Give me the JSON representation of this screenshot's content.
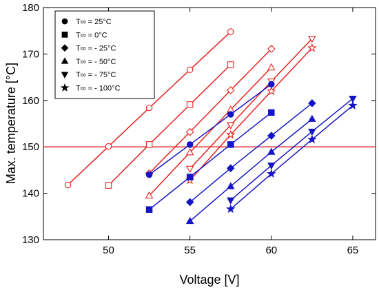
{
  "chart_data": {
    "type": "line",
    "xlabel": "Voltage [V]",
    "ylabel": "Max. temperature [°C]",
    "xlim": [
      46,
      66.4
    ],
    "ylim": [
      130,
      180
    ],
    "xticks": [
      50,
      55,
      60,
      65
    ],
    "yticks": [
      130,
      140,
      150,
      160,
      170,
      180
    ],
    "grid": false,
    "legend_position": "top-left",
    "reference_line": {
      "y": 150,
      "color": "#e02020"
    },
    "colors": {
      "red": "#e8211e",
      "blue": "#1515c8"
    },
    "series": [
      {
        "name": "T∞ = 25°C",
        "marker": "circle",
        "color": "red",
        "fill": false,
        "x": [
          47.5,
          50,
          52.5,
          55,
          57.5
        ],
        "y": [
          141.8,
          150.1,
          158.4,
          166.6,
          174.8
        ]
      },
      {
        "name": "T∞ = 0°C",
        "marker": "square",
        "color": "red",
        "fill": false,
        "x": [
          50,
          52.5,
          55,
          57.5
        ],
        "y": [
          141.7,
          150.5,
          159.1,
          167.7
        ]
      },
      {
        "name": "T∞ = - 25°C",
        "marker": "diamond",
        "color": "red",
        "fill": false,
        "x": [
          52.5,
          55,
          57.5,
          60
        ],
        "y": [
          144.3,
          153.2,
          162.2,
          171.1
        ]
      },
      {
        "name": "T∞ = - 50°C",
        "marker": "triangle-up",
        "color": "red",
        "fill": false,
        "x": [
          52.5,
          55,
          57.5,
          60
        ],
        "y": [
          139.5,
          148.8,
          158,
          167.1
        ]
      },
      {
        "name": "T∞ = - 75°C",
        "marker": "triangle-down",
        "color": "red",
        "fill": false,
        "x": [
          55,
          57.5,
          60,
          62.5
        ],
        "y": [
          145.3,
          154.7,
          164.1,
          173.3
        ]
      },
      {
        "name": "T∞ = - 100°C",
        "marker": "star",
        "color": "red",
        "fill": false,
        "x": [
          55,
          57.5,
          60,
          62.5
        ],
        "y": [
          142.8,
          152.6,
          162,
          171.3
        ]
      },
      {
        "name": "T∞ = 25°C",
        "marker": "circle",
        "color": "blue",
        "fill": true,
        "x": [
          52.5,
          55,
          57.5,
          60
        ],
        "y": [
          144,
          150.5,
          157,
          163.5
        ]
      },
      {
        "name": "T∞ = 0°C",
        "marker": "square",
        "color": "blue",
        "fill": true,
        "x": [
          52.5,
          55,
          57.5,
          60
        ],
        "y": [
          136.5,
          143.5,
          150.5,
          157.4
        ]
      },
      {
        "name": "T∞ = - 25°C",
        "marker": "diamond",
        "color": "blue",
        "fill": true,
        "x": [
          55,
          57.5,
          60,
          62.5
        ],
        "y": [
          138.1,
          145.4,
          152.4,
          159.4
        ]
      },
      {
        "name": "T∞ = - 50°C",
        "marker": "triangle-up",
        "color": "blue",
        "fill": true,
        "x": [
          55,
          57.5,
          60,
          62.5
        ],
        "y": [
          134,
          141.5,
          148.9,
          156
        ]
      },
      {
        "name": "T∞ = - 75°C",
        "marker": "triangle-down",
        "color": "blue",
        "fill": true,
        "x": [
          57.5,
          60,
          62.5,
          65
        ],
        "y": [
          138.5,
          146,
          153.3,
          160.4
        ]
      },
      {
        "name": "T∞ = - 100°C",
        "marker": "star",
        "color": "blue",
        "fill": true,
        "x": [
          57.5,
          60,
          62.5,
          65
        ],
        "y": [
          136.6,
          144.2,
          151.6,
          158.9
        ]
      }
    ],
    "legend": [
      {
        "marker": "circle",
        "label": "T∞ = 25°C"
      },
      {
        "marker": "square",
        "label": "T∞ =  0°C"
      },
      {
        "marker": "diamond",
        "label": "T∞ =  - 25°C"
      },
      {
        "marker": "triangle-up",
        "label": "T∞ =  - 50°C"
      },
      {
        "marker": "triangle-down",
        "label": "T∞ =  - 75°C"
      },
      {
        "marker": "star",
        "label": "T∞ =  - 100°C"
      }
    ]
  }
}
